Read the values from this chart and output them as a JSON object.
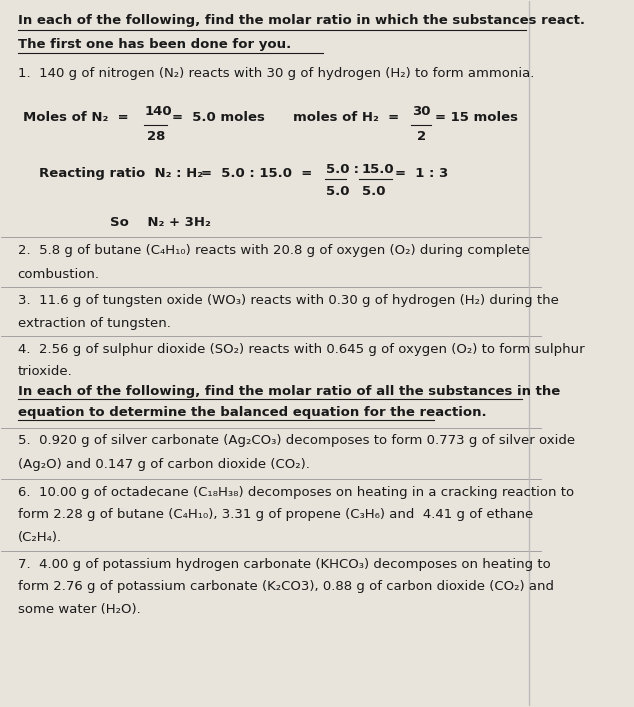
{
  "bg_color": "#e8e4dc",
  "text_color": "#1a1a1a",
  "fig_width": 6.34,
  "fig_height": 7.07,
  "dpi": 100,
  "lm": 0.03,
  "fs": 9.5,
  "title1": "In each of the following, find the molar ratio in which the substances react.",
  "title2": "The first one has been done for you.",
  "q1": "1.  140 g of nitrogen (N₂) reacts with 30 g of hydrogen (H₂) to form ammonia.",
  "moles_n2_label": "Moles of N₂  =",
  "moles_n2_num": "140",
  "moles_n2_den": "28",
  "moles_n2_val": "=  5.0 moles",
  "moles_h2_label": "moles of H₂  =",
  "moles_h2_num": "30",
  "moles_h2_den": "2",
  "moles_h2_val": "= 15 moles",
  "react_label": "Reacting ratio  N₂ : H₂",
  "react_eq": "=  5.0 : 15.0  =",
  "react_num1": "5.0",
  "react_colon": " : ",
  "react_num2": "15.0",
  "react_den1": "5.0",
  "react_den2": "5.0",
  "react_result": "=  1 : 3",
  "so_line": "So    N₂ + 3H₂",
  "q2a": "2.  5.8 g of butane (C₄H₁₀) reacts with 20.8 g of oxygen (O₂) during complete",
  "q2b": "combustion.",
  "q3a": "3.  11.6 g of tungsten oxide (WO₃) reacts with 0.30 g of hydrogen (H₂) during the",
  "q3b": "extraction of tungsten.",
  "q4a": "4.  2.56 g of sulphur dioxide (SO₂) reacts with 0.645 g of oxygen (O₂) to form sulphur",
  "q4b": "trioxide.",
  "header2a": "In each of the following, find the molar ratio of all the substances in the",
  "header2b": "equation to determine the balanced equation for the reaction.",
  "q5a": "5.  0.920 g of silver carbonate (Ag₂CO₃) decomposes to form 0.773 g of silver oxide",
  "q5b": "(Ag₂O) and 0.147 g of carbon dioxide (CO₂).",
  "q6a": "6.  10.00 g of octadecane (C₁₈H₃₈) decomposes on heating in a cracking reaction to",
  "q6b": "form 2.28 g of butane (C₄H₁₀), 3.31 g of propene (C₃H₆) and  4.41 g of ethane",
  "q6c": "(C₂H₄).",
  "q7a": "7.  4.00 g of potassium hydrogen carbonate (KHCO₃) decomposes on heating to",
  "q7b": "form 2.76 g of potassium carbonate (K₂CO3), 0.88 g of carbon dioxide (CO₂) and",
  "q7c": "some water (H₂O).",
  "sep_color": "#888888",
  "right_line_color": "#bbbbbb"
}
